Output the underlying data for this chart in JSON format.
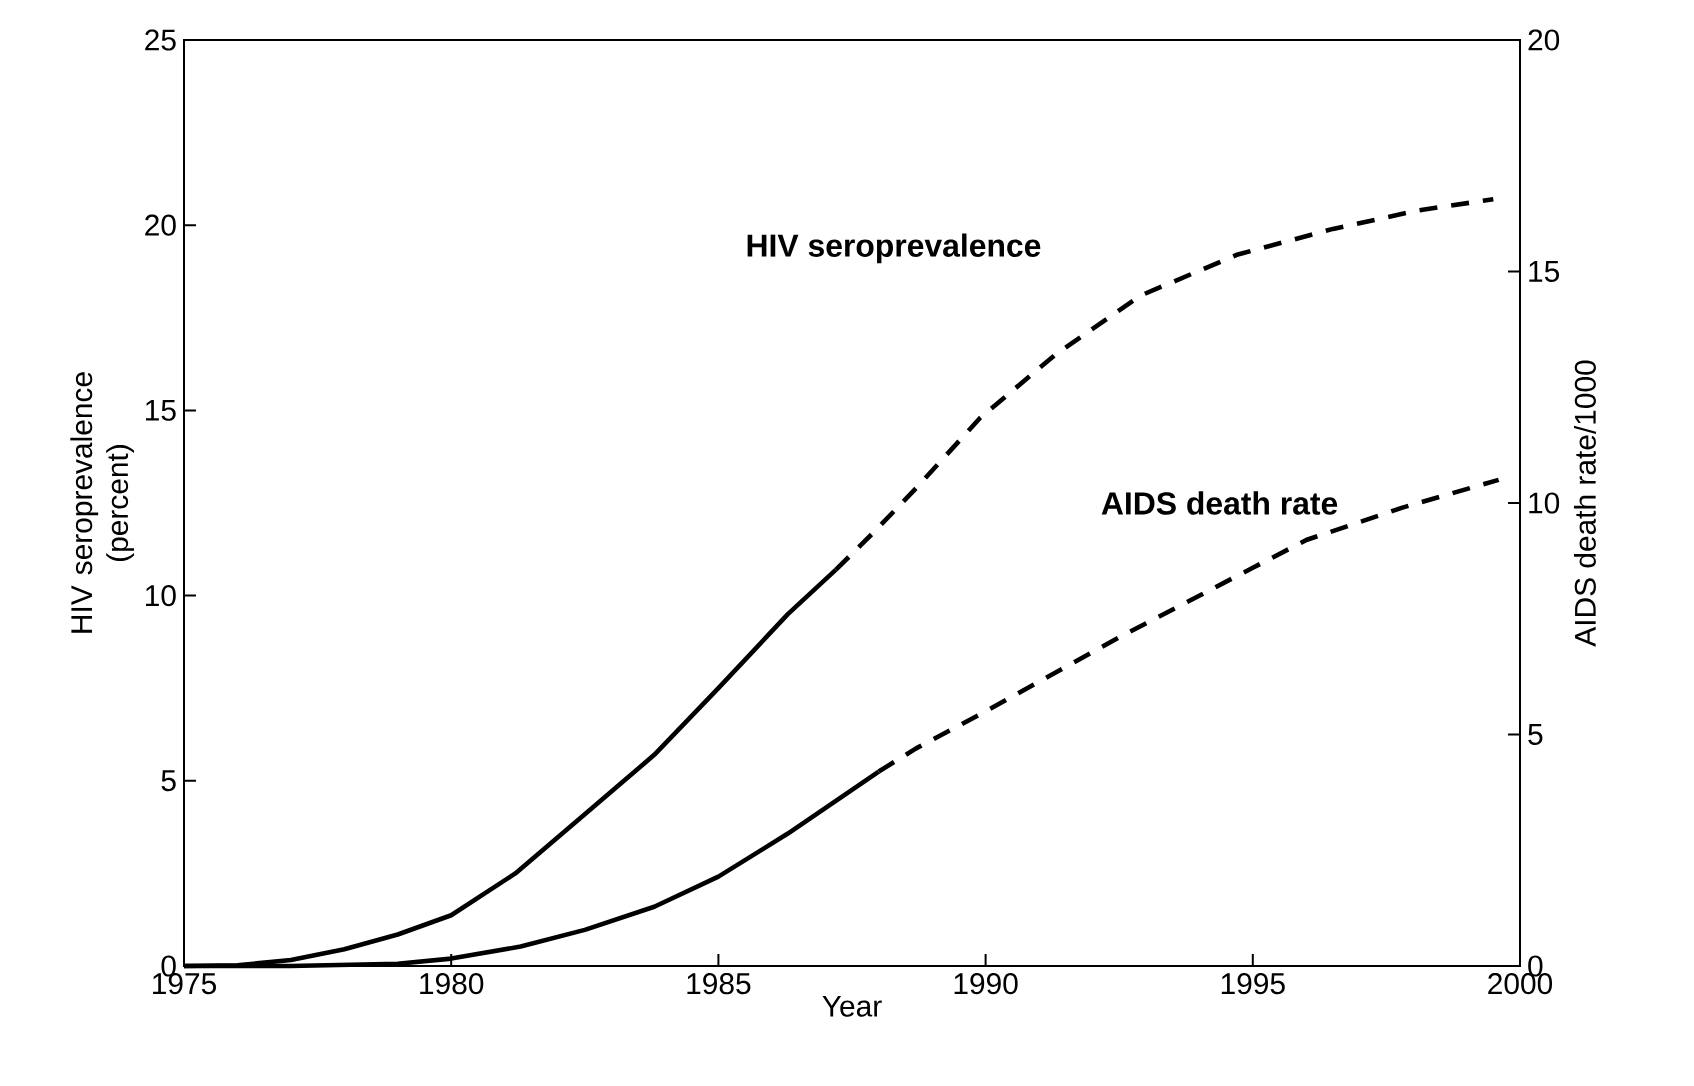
{
  "chart_data": {
    "type": "line",
    "xlabel": "Year",
    "ylabel": "HIV seroprevalence (percent)",
    "y2label": "AIDS death rate/1000",
    "xlim": [
      1975,
      2000
    ],
    "xticks": [
      1975,
      1980,
      1985,
      1990,
      1995,
      2000
    ],
    "ylim": [
      0,
      25
    ],
    "yticks": [
      0,
      5,
      10,
      15,
      20,
      25
    ],
    "y2lim": [
      0,
      20
    ],
    "y2ticks": [
      0,
      5,
      10,
      15,
      20
    ],
    "series": [
      {
        "color": "#000000",
        "line_style": "solid",
        "x": [
          1975,
          1976,
          1977,
          1978,
          1979,
          1980,
          1981.2,
          1982.5,
          1983.8,
          1985,
          1986.3,
          1987.2
        ],
        "values": [
          0,
          0.02,
          0.16,
          0.45,
          0.85,
          1.37,
          2.5,
          4.1,
          5.7,
          7.5,
          9.5,
          10.7
        ]
      },
      {
        "name": "HIV seroprevalence",
        "color": "#000000",
        "line_style": "dashed",
        "x": [
          1987.2,
          1987.9,
          1988.7,
          1989.9,
          1991.3,
          1992.9,
          1994.7,
          1996.5,
          1998.1,
          1999.5
        ],
        "values": [
          10.7,
          11.7,
          12.9,
          14.8,
          16.5,
          18.1,
          19.2,
          19.9,
          20.4,
          20.7
        ]
      },
      {
        "color": "#000000",
        "line_style": "solid",
        "axis": "y2",
        "x": [
          1975,
          1977,
          1979,
          1980,
          1981.3,
          1982.5,
          1983.8,
          1985,
          1986.3,
          1988
        ],
        "values": [
          0,
          0,
          0.05,
          0.16,
          0.42,
          0.78,
          1.28,
          1.93,
          2.86,
          4.2
        ]
      },
      {
        "name": "AIDS death rate",
        "color": "#000000",
        "line_style": "dashed",
        "axis": "y2",
        "x": [
          1988,
          1988.7,
          1990,
          1992.5,
          1995,
          1996,
          1997.8,
          1999.6
        ],
        "values": [
          4.2,
          4.7,
          5.5,
          7.1,
          8.6,
          9.2,
          9.9,
          10.5
        ]
      }
    ]
  }
}
